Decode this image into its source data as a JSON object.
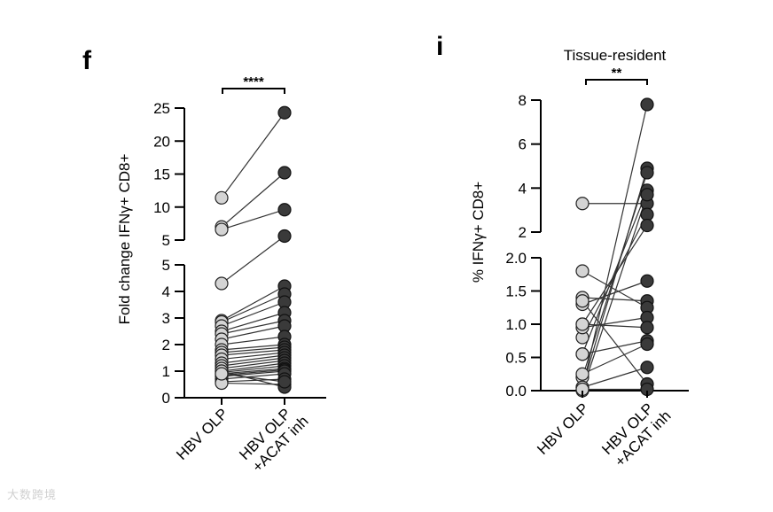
{
  "chart_data": [
    {
      "panel_label": "f",
      "type": "scatter",
      "title": "",
      "ylabel": "Fold change IFNγ+ CD8+",
      "categories": [
        "HBV OLP",
        "HBV OLP\n+ACAT inh"
      ],
      "category_lines": [
        [
          "HBV OLP"
        ],
        [
          "HBV OLP",
          "+ACAT inh"
        ]
      ],
      "significance": "****",
      "y_broken_axis": {
        "lower": {
          "range": [
            0,
            5
          ],
          "ticks": [
            0,
            1,
            2,
            3,
            4,
            5
          ]
        },
        "upper": {
          "range": [
            5,
            25
          ],
          "ticks": [
            5,
            10,
            15,
            20,
            25
          ]
        }
      },
      "pairs": [
        [
          11.4,
          24.3
        ],
        [
          7.0,
          15.2
        ],
        [
          6.6,
          9.6
        ],
        [
          4.3,
          5.6
        ],
        [
          2.9,
          4.2
        ],
        [
          2.85,
          3.9
        ],
        [
          2.7,
          3.6
        ],
        [
          2.5,
          3.2
        ],
        [
          2.4,
          2.9
        ],
        [
          2.2,
          2.7
        ],
        [
          2.0,
          2.3
        ],
        [
          1.8,
          2.0
        ],
        [
          1.7,
          1.9
        ],
        [
          1.6,
          1.8
        ],
        [
          1.45,
          1.7
        ],
        [
          1.3,
          1.6
        ],
        [
          1.2,
          1.5
        ],
        [
          1.1,
          1.4
        ],
        [
          1.0,
          1.3
        ],
        [
          0.95,
          1.2
        ],
        [
          0.9,
          1.1
        ],
        [
          0.85,
          1.05
        ],
        [
          0.8,
          1.0
        ],
        [
          0.7,
          0.9
        ],
        [
          0.6,
          0.7
        ],
        [
          0.55,
          0.5
        ],
        [
          1.0,
          0.4
        ],
        [
          0.9,
          0.6
        ]
      ]
    },
    {
      "panel_label": "i",
      "type": "scatter",
      "title": "Tissue-resident",
      "ylabel": "% IFNγ+ CD8+",
      "categories": [
        "HBV OLP",
        "HBV OLP\n+ACAT inh"
      ],
      "category_lines": [
        [
          "HBV OLP"
        ],
        [
          "HBV OLP",
          "+ACAT inh"
        ]
      ],
      "significance": "**",
      "y_broken_axis": {
        "lower": {
          "range": [
            0,
            2
          ],
          "ticks": [
            "0.0",
            "0.5",
            "1.0",
            "1.5",
            "2.0"
          ]
        },
        "upper": {
          "range": [
            2,
            8
          ],
          "ticks": [
            2,
            4,
            6,
            8
          ]
        }
      },
      "pairs": [
        [
          3.3,
          3.3
        ],
        [
          0.02,
          7.8
        ],
        [
          0.05,
          4.9
        ],
        [
          0.2,
          4.7
        ],
        [
          0.55,
          3.9
        ],
        [
          0.0,
          3.7
        ],
        [
          0.8,
          2.8
        ],
        [
          1.0,
          2.3
        ],
        [
          1.3,
          1.65
        ],
        [
          1.4,
          1.35
        ],
        [
          1.8,
          1.25
        ],
        [
          0.95,
          1.1
        ],
        [
          1.0,
          0.95
        ],
        [
          0.55,
          0.75
        ],
        [
          0.25,
          0.7
        ],
        [
          0.05,
          0.35
        ],
        [
          1.35,
          0.1
        ],
        [
          0.02,
          0.02
        ]
      ]
    }
  ],
  "watermark": "大数跨境"
}
